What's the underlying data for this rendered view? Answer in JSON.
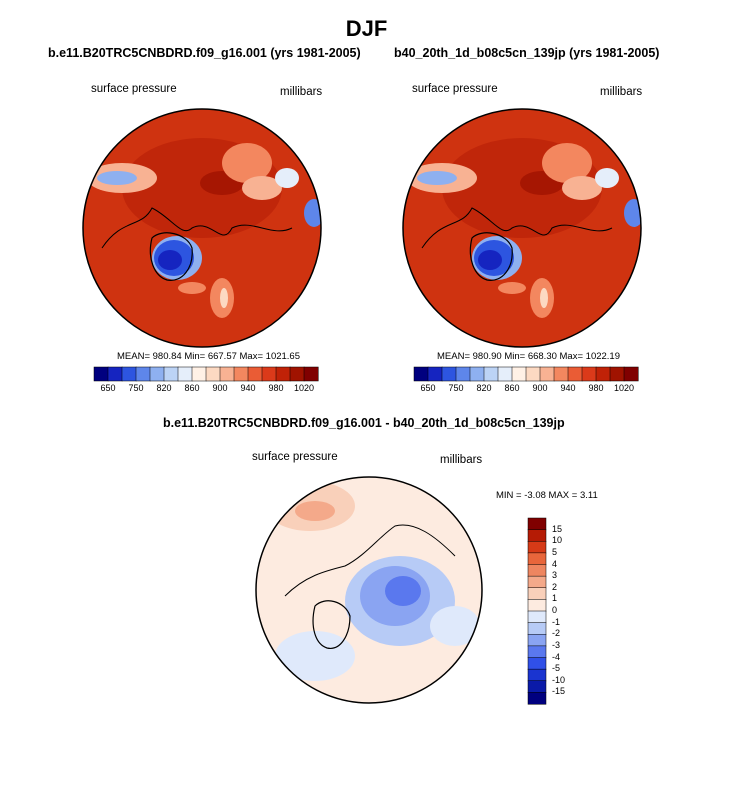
{
  "title": "DJF",
  "panels": [
    {
      "case": "b.e11.B20TRC5CNBDRD.f09_g16.001 (yrs 1981-2005)",
      "variable": "surface pressure",
      "units": "millibars",
      "stats": "MEAN= 980.84  Min= 667.57  Max= 1021.65"
    },
    {
      "case": "b40_20th_1d_b08c5cn_139jp (yrs 1981-2005)",
      "variable": "surface pressure",
      "units": "millibars",
      "stats": "MEAN= 980.90  Min= 668.30  Max= 1022.19"
    }
  ],
  "difference": {
    "title": "b.e11.B20TRC5CNBDRD.f09_g16.001 - b40_20th_1d_b08c5cn_139jp",
    "variable": "surface pressure",
    "units": "millibars",
    "stats": "MIN =  -3.08 MAX =   3.11"
  },
  "chart_data": [
    {
      "type": "heatmap",
      "projection": "north polar stereographic",
      "title": "b.e11.B20TRC5CNBDRD.f09_g16.001 (yrs 1981-2005)",
      "variable": "surface pressure",
      "units": "millibars",
      "mean": 980.84,
      "min": 667.57,
      "max": 1021.65,
      "colorbar_levels": [
        650,
        700,
        750,
        800,
        820,
        840,
        860,
        880,
        900,
        920,
        940,
        960,
        980,
        1000,
        1020
      ],
      "colorbar_labels": [
        "650",
        "750",
        "820",
        "860",
        "900",
        "940",
        "980",
        "1020"
      ],
      "colorbar_colors": [
        "#00007f",
        "#1524c0",
        "#2d55e0",
        "#5e86ea",
        "#8eb0f0",
        "#bcd3f5",
        "#e5eefa",
        "#fff1e6",
        "#fcd9c2",
        "#f8b293",
        "#f3875f",
        "#ea5c35",
        "#db3a1a",
        "#c02207",
        "#a01300",
        "#800000"
      ]
    },
    {
      "type": "heatmap",
      "projection": "north polar stereographic",
      "title": "b40_20th_1d_b08c5cn_139jp (yrs 1981-2005)",
      "variable": "surface pressure",
      "units": "millibars",
      "mean": 980.9,
      "min": 668.3,
      "max": 1022.19,
      "colorbar_levels": [
        650,
        700,
        750,
        800,
        820,
        840,
        860,
        880,
        900,
        920,
        940,
        960,
        980,
        1000,
        1020
      ],
      "colorbar_labels": [
        "650",
        "750",
        "820",
        "860",
        "900",
        "940",
        "980",
        "1020"
      ],
      "colorbar_colors": [
        "#00007f",
        "#1524c0",
        "#2d55e0",
        "#5e86ea",
        "#8eb0f0",
        "#bcd3f5",
        "#e5eefa",
        "#fff1e6",
        "#fcd9c2",
        "#f8b293",
        "#f3875f",
        "#ea5c35",
        "#db3a1a",
        "#c02207",
        "#a01300",
        "#800000"
      ]
    },
    {
      "type": "heatmap",
      "projection": "north polar stereographic",
      "title": "b.e11.B20TRC5CNBDRD.f09_g16.001 - b40_20th_1d_b08c5cn_139jp",
      "variable": "surface pressure",
      "units": "millibars",
      "min": -3.08,
      "max": 3.11,
      "colorbar_levels": [
        -15,
        -10,
        -5,
        -4,
        -3,
        -2,
        -1,
        0,
        1,
        2,
        3,
        4,
        5,
        10,
        15
      ],
      "colorbar_labels": [
        "15",
        "10",
        "5",
        "4",
        "3",
        "2",
        "1",
        "0",
        "-1",
        "-2",
        "-3",
        "-4",
        "-5",
        "-10",
        "-15"
      ],
      "colorbar_colors": [
        "#00007f",
        "#0a1aa8",
        "#1a34d0",
        "#3050e8",
        "#5a78ee",
        "#8aa4f2",
        "#b7cbf6",
        "#dfe9fb",
        "#fdebe0",
        "#f9d0ba",
        "#f4a98a",
        "#ee8660",
        "#e8663b",
        "#d63a17",
        "#b51b05",
        "#800000"
      ]
    }
  ]
}
